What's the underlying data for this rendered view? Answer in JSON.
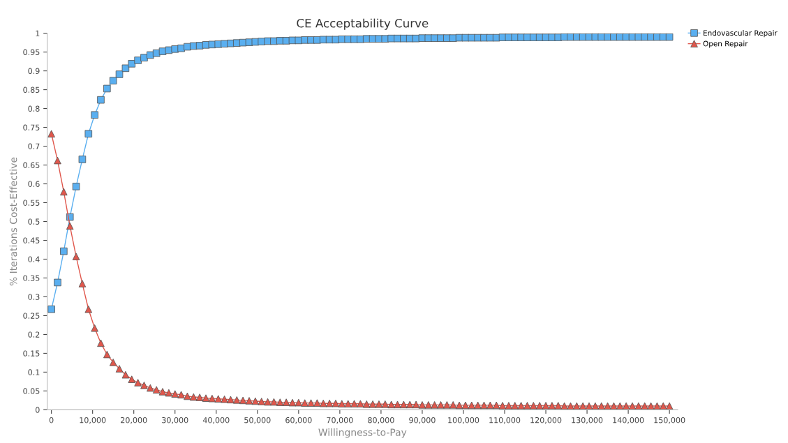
{
  "chart_data": {
    "type": "line",
    "title": "CE Acceptability Curve",
    "xlabel": "Willingness-to-Pay",
    "ylabel": "% Iterations Cost-Effective",
    "x": [
      0,
      1500,
      3000,
      4500,
      6000,
      7500,
      9000,
      10500,
      12000,
      13500,
      15000,
      16500,
      18000,
      19500,
      21000,
      22500,
      24000,
      25500,
      27000,
      28500,
      30000,
      31500,
      33000,
      34500,
      36000,
      37500,
      39000,
      40500,
      42000,
      43500,
      45000,
      46500,
      48000,
      49500,
      51000,
      52500,
      54000,
      55500,
      57000,
      58500,
      60000,
      61500,
      63000,
      64500,
      66000,
      67500,
      69000,
      70500,
      72000,
      73500,
      75000,
      76500,
      78000,
      79500,
      81000,
      82500,
      84000,
      85500,
      87000,
      88500,
      90000,
      91500,
      93000,
      94500,
      96000,
      97500,
      99000,
      100500,
      102000,
      103500,
      105000,
      106500,
      108000,
      109500,
      111000,
      112500,
      114000,
      115500,
      117000,
      118500,
      120000,
      121500,
      123000,
      124500,
      126000,
      127500,
      129000,
      130500,
      132000,
      133500,
      135000,
      136500,
      138000,
      139500,
      141000,
      142500,
      144000,
      145500,
      147000,
      148500,
      150000
    ],
    "series": [
      {
        "name": "Endovascular Repair",
        "color": "#5aaff0",
        "marker": "square",
        "values": [
          0.267,
          0.338,
          0.421,
          0.512,
          0.593,
          0.665,
          0.733,
          0.783,
          0.823,
          0.853,
          0.874,
          0.891,
          0.907,
          0.919,
          0.928,
          0.935,
          0.942,
          0.947,
          0.952,
          0.955,
          0.958,
          0.96,
          0.964,
          0.966,
          0.967,
          0.969,
          0.97,
          0.971,
          0.972,
          0.973,
          0.974,
          0.975,
          0.976,
          0.977,
          0.978,
          0.979,
          0.979,
          0.98,
          0.98,
          0.981,
          0.981,
          0.982,
          0.982,
          0.982,
          0.983,
          0.983,
          0.983,
          0.984,
          0.984,
          0.984,
          0.984,
          0.985,
          0.985,
          0.985,
          0.985,
          0.986,
          0.986,
          0.986,
          0.986,
          0.986,
          0.987,
          0.987,
          0.987,
          0.987,
          0.987,
          0.987,
          0.988,
          0.988,
          0.988,
          0.988,
          0.988,
          0.988,
          0.988,
          0.989,
          0.989,
          0.989,
          0.989,
          0.989,
          0.989,
          0.989,
          0.989,
          0.989,
          0.989,
          0.99,
          0.99,
          0.99,
          0.99,
          0.99,
          0.99,
          0.99,
          0.99,
          0.99,
          0.99,
          0.99,
          0.99,
          0.99,
          0.99,
          0.99,
          0.99,
          0.99,
          0.99
        ]
      },
      {
        "name": "Open Repair",
        "color": "#e0574c",
        "marker": "triangle",
        "values": [
          0.733,
          0.662,
          0.579,
          0.488,
          0.407,
          0.335,
          0.267,
          0.217,
          0.177,
          0.147,
          0.126,
          0.109,
          0.093,
          0.081,
          0.072,
          0.065,
          0.058,
          0.053,
          0.048,
          0.045,
          0.042,
          0.04,
          0.036,
          0.034,
          0.033,
          0.031,
          0.03,
          0.029,
          0.028,
          0.027,
          0.026,
          0.025,
          0.024,
          0.023,
          0.022,
          0.021,
          0.021,
          0.02,
          0.02,
          0.019,
          0.019,
          0.018,
          0.018,
          0.018,
          0.017,
          0.017,
          0.017,
          0.016,
          0.016,
          0.016,
          0.016,
          0.015,
          0.015,
          0.015,
          0.015,
          0.014,
          0.014,
          0.014,
          0.014,
          0.014,
          0.013,
          0.013,
          0.013,
          0.013,
          0.013,
          0.013,
          0.012,
          0.012,
          0.012,
          0.012,
          0.012,
          0.012,
          0.012,
          0.011,
          0.011,
          0.011,
          0.011,
          0.011,
          0.011,
          0.011,
          0.011,
          0.011,
          0.011,
          0.01,
          0.01,
          0.01,
          0.01,
          0.01,
          0.01,
          0.01,
          0.01,
          0.01,
          0.01,
          0.01,
          0.01,
          0.01,
          0.01,
          0.01,
          0.01,
          0.01,
          0.01
        ]
      }
    ],
    "xlim": [
      -1000,
      152000
    ],
    "ylim": [
      0,
      1
    ],
    "xticks": [
      {
        "value": 0,
        "label": "0"
      },
      {
        "value": 10000,
        "label": "10,000"
      },
      {
        "value": 20000,
        "label": "20,000"
      },
      {
        "value": 30000,
        "label": "30,000"
      },
      {
        "value": 40000,
        "label": "40,000"
      },
      {
        "value": 50000,
        "label": "50,000"
      },
      {
        "value": 60000,
        "label": "60,000"
      },
      {
        "value": 70000,
        "label": "70,000"
      },
      {
        "value": 80000,
        "label": "80,000"
      },
      {
        "value": 90000,
        "label": "90,000"
      },
      {
        "value": 100000,
        "label": "100,000"
      },
      {
        "value": 110000,
        "label": "110,000"
      },
      {
        "value": 120000,
        "label": "120,000"
      },
      {
        "value": 130000,
        "label": "130,000"
      },
      {
        "value": 140000,
        "label": "140,000"
      },
      {
        "value": 150000,
        "label": "150,000"
      }
    ],
    "yticks": [
      0,
      0.05,
      0.1,
      0.15,
      0.2,
      0.25,
      0.3,
      0.35,
      0.4,
      0.45,
      0.5,
      0.55,
      0.6,
      0.65,
      0.7,
      0.75,
      0.8,
      0.85,
      0.9,
      0.95,
      1
    ],
    "grid": false,
    "legend": "top right",
    "line_style": "solid"
  }
}
